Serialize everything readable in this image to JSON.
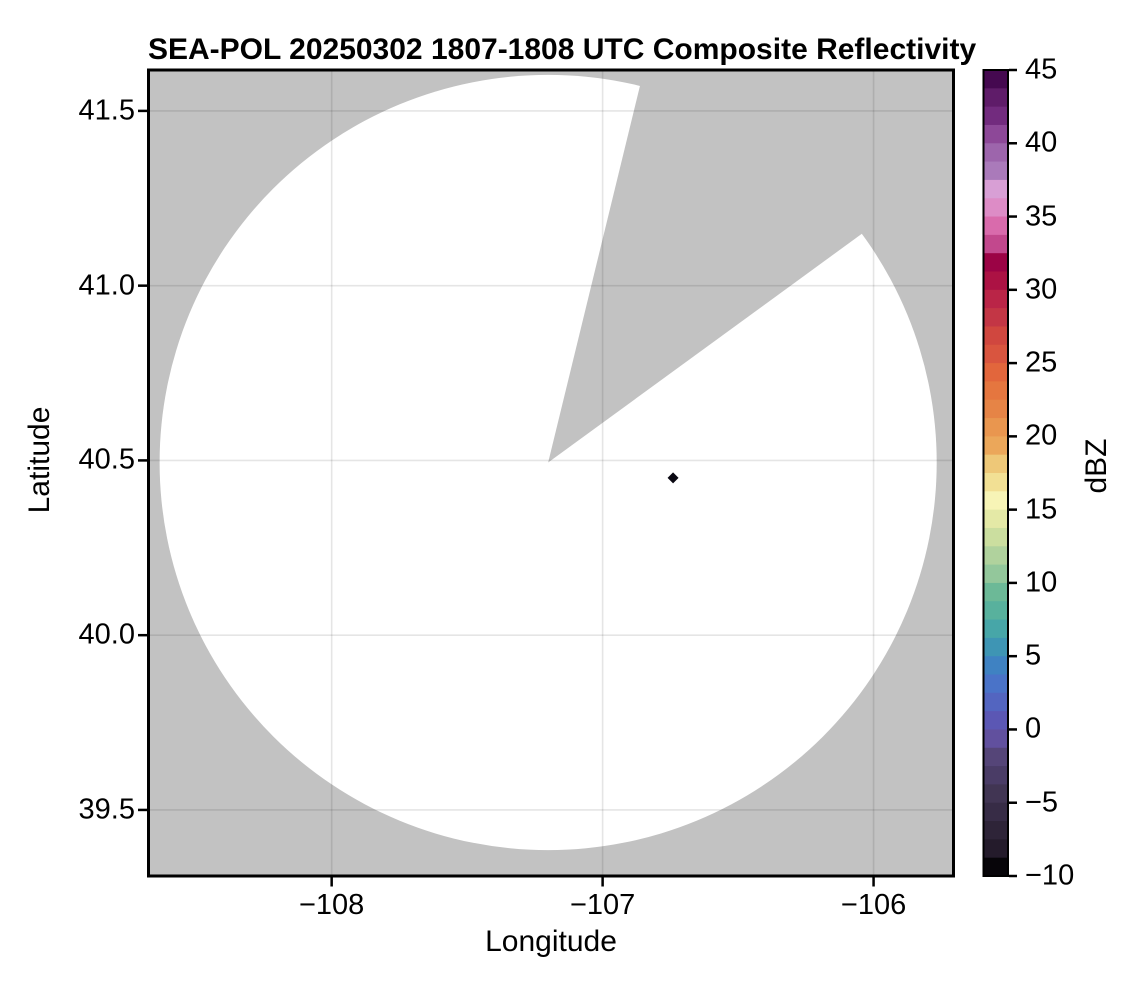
{
  "title": "SEA-POL 20250302 1807-1808 UTC Composite Reflectivity",
  "axes": {
    "xlabel": "Longitude",
    "ylabel": "Latitude",
    "xlim": [
      -108.676,
      -105.705
    ],
    "ylim": [
      39.311,
      41.617
    ],
    "x_ticks": [
      {
        "value": -108,
        "label": "−108"
      },
      {
        "value": -107,
        "label": "−107"
      },
      {
        "value": -106,
        "label": "−106"
      }
    ],
    "y_ticks": [
      {
        "value": 39.5,
        "label": "39.5"
      },
      {
        "value": 40.0,
        "label": "40.0"
      },
      {
        "value": 40.5,
        "label": "40.5"
      },
      {
        "value": 41.0,
        "label": "41.0"
      },
      {
        "value": 41.5,
        "label": "41.5"
      }
    ]
  },
  "radar": {
    "center_lon": -107.201,
    "center_lat": 40.494,
    "scan_radius_lon_deg": 1.434,
    "scan_radius_lat_deg": 1.109,
    "blocked_sector": {
      "start_azimuth_deg": 13.7,
      "end_azimuth_deg": 53.9
    }
  },
  "marker": {
    "lon": -106.74,
    "lat": 40.45,
    "shape": "diamond",
    "color": "#0a0812"
  },
  "colors": {
    "map_background": "#c2c2c2",
    "scan_area": "#ffffff",
    "gridline": "rgba(0,0,0,0.10)",
    "frame": "#000000"
  },
  "colorbar": {
    "label": "dBZ",
    "vmin": -10,
    "vmax": 45,
    "band_step": 1.25,
    "ticks": [
      {
        "value": 45,
        "label": "45"
      },
      {
        "value": 40,
        "label": "40"
      },
      {
        "value": 35,
        "label": "35"
      },
      {
        "value": 30,
        "label": "30"
      },
      {
        "value": 25,
        "label": "25"
      },
      {
        "value": 20,
        "label": "20"
      },
      {
        "value": 15,
        "label": "15"
      },
      {
        "value": 10,
        "label": "10"
      },
      {
        "value": 5,
        "label": "5"
      },
      {
        "value": 0,
        "label": "0"
      },
      {
        "value": -5,
        "label": "−5"
      },
      {
        "value": -10,
        "label": "−10"
      }
    ],
    "band_colors": [
      "#450950",
      "#5f1c69",
      "#722b7e",
      "#8d4898",
      "#9d65ac",
      "#aa7aba",
      "#d89fd5",
      "#dd8cc6",
      "#d96bac",
      "#c2488d",
      "#9b0345",
      "#ac1244",
      "#ba2547",
      "#c33645",
      "#d0473f",
      "#d9553f",
      "#e2663c",
      "#e5763f",
      "#e68446",
      "#e9964f",
      "#eba75a",
      "#eec878",
      "#f2e094",
      "#f7f4b6",
      "#e4e9a6",
      "#cbde9f",
      "#b0d29d",
      "#93c79b",
      "#6cb997",
      "#58b19d",
      "#47a6a8",
      "#3e95b4",
      "#3f82c2",
      "#4a73c8",
      "#5365c0",
      "#5b57b4",
      "#61509e",
      "#554578",
      "#4a3c66",
      "#413553",
      "#372c46",
      "#2e2438",
      "#241b2b",
      "#070509"
    ]
  },
  "chart_data": {
    "type": "heatmap",
    "title": "SEA-POL 20250302 1807-1808 UTC Composite Reflectivity",
    "xlabel": "Longitude",
    "ylabel": "Latitude",
    "xlim": [
      -108.676,
      -105.705
    ],
    "ylim": [
      39.311,
      41.617
    ],
    "x_ticks": [
      -108,
      -107,
      -106
    ],
    "y_ticks": [
      39.5,
      40.0,
      40.5,
      41.0,
      41.5
    ],
    "colorbar": {
      "label": "dBZ",
      "range": [
        -10,
        45
      ],
      "tick_step": 5,
      "quantization_step": 1.25
    },
    "radar_center": [
      -107.201,
      40.494
    ],
    "scan_radius_deg": {
      "lon": 1.434,
      "lat": 1.109
    },
    "blocked_sector_azimuth_deg": [
      13.7,
      53.9
    ],
    "scan_area_value": "no echo (white)",
    "outside_coverage": "gray",
    "echoes": [
      {
        "lon": -106.74,
        "lat": 40.45,
        "dbz_approx": -10
      }
    ]
  }
}
